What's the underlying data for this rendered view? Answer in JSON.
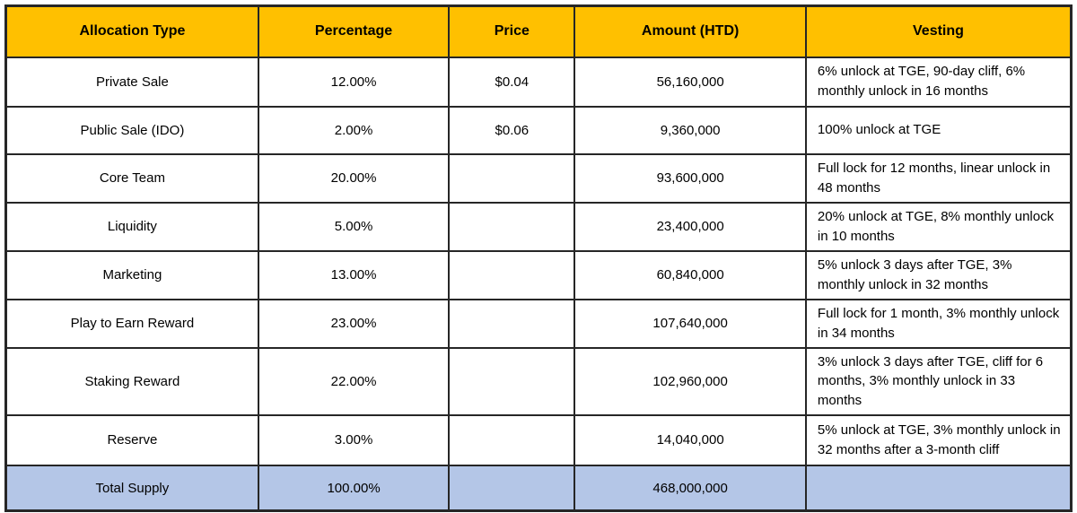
{
  "chart_data": {
    "type": "table",
    "columns": [
      "Allocation Type",
      "Percentage",
      "Price",
      "Amount (HTD)",
      "Vesting"
    ],
    "rows": [
      {
        "allocation": "Private Sale",
        "percentage": "12.00%",
        "price": "$0.04",
        "amount": "56,160,000",
        "vesting": "6% unlock at TGE, 90-day cliff, 6% monthly unlock in 16 months"
      },
      {
        "allocation": "Public Sale (IDO)",
        "percentage": "2.00%",
        "price": "$0.06",
        "amount": "9,360,000",
        "vesting": "100% unlock at TGE"
      },
      {
        "allocation": "Core Team",
        "percentage": "20.00%",
        "price": "",
        "amount": "93,600,000",
        "vesting": "Full lock for 12 months, linear unlock in 48 months"
      },
      {
        "allocation": "Liquidity",
        "percentage": "5.00%",
        "price": "",
        "amount": "23,400,000",
        "vesting": "20% unlock at TGE, 8% monthly unlock in 10 months"
      },
      {
        "allocation": "Marketing",
        "percentage": "13.00%",
        "price": "",
        "amount": "60,840,000",
        "vesting": "5% unlock 3 days after TGE, 3% monthly unlock in 32 months"
      },
      {
        "allocation": "Play to Earn Reward",
        "percentage": "23.00%",
        "price": "",
        "amount": "107,640,000",
        "vesting": "Full lock for 1 month, 3% monthly unlock in 34 months"
      },
      {
        "allocation": "Staking Reward",
        "percentage": "22.00%",
        "price": "",
        "amount": "102,960,000",
        "vesting": "3% unlock 3 days after TGE, cliff for 6 months, 3% monthly unlock in 33 months"
      },
      {
        "allocation": "Reserve",
        "percentage": "3.00%",
        "price": "",
        "amount": "14,040,000",
        "vesting": "5% unlock at TGE, 3% monthly unlock in 32 months after a 3-month cliff"
      }
    ],
    "total": {
      "allocation": "Total Supply",
      "percentage": "100.00%",
      "price": "",
      "amount": "468,000,000",
      "vesting": ""
    },
    "token_symbol": "HTD"
  },
  "colors": {
    "header_bg": "#FFC000",
    "total_bg": "#B4C6E7",
    "border": "#262626",
    "text": "#000000",
    "page_bg": "#FFFFFF"
  }
}
